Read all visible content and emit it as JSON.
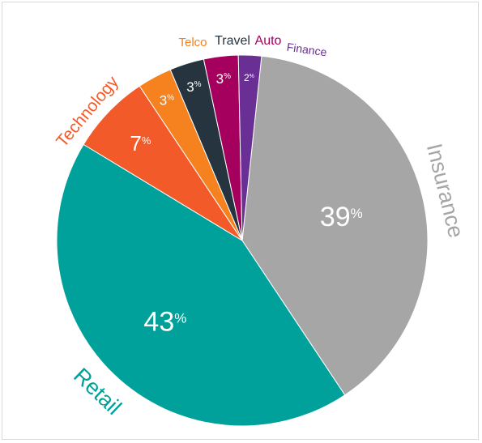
{
  "chart_data": {
    "type": "pie",
    "title": "",
    "slices": [
      {
        "name": "Insurance",
        "value": 39,
        "label": "39",
        "color": "#a6a6a6"
      },
      {
        "name": "Retail",
        "value": 43,
        "label": "43",
        "color": "#00a19a"
      },
      {
        "name": "Technology",
        "value": 7,
        "label": "7",
        "color": "#f25a29"
      },
      {
        "name": "Telco",
        "value": 3,
        "label": "3",
        "color": "#f5821f"
      },
      {
        "name": "Travel",
        "value": 3,
        "label": "3",
        "color": "#26343f"
      },
      {
        "name": "Auto",
        "value": 3,
        "label": "3",
        "color": "#a6005f"
      },
      {
        "name": "Finance",
        "value": 2,
        "label": "2",
        "color": "#6a2f95"
      }
    ],
    "percent_sign": "%"
  }
}
